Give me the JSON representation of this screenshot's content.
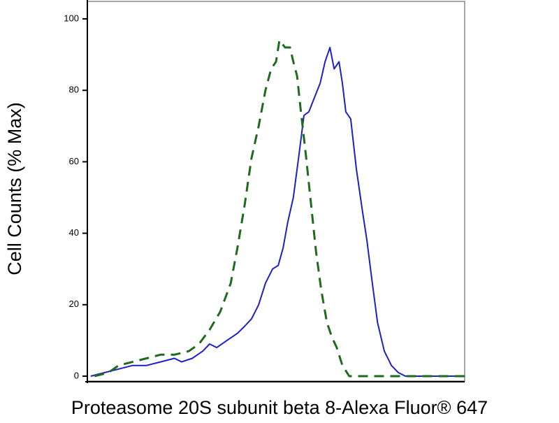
{
  "chart_data": {
    "type": "line",
    "x_label": "Proteasome 20S subunit beta 8-Alexa Fluor® 647",
    "y_label": "Cell Counts (% Max)",
    "xlim": [
      0,
      100
    ],
    "ylim": [
      0,
      100
    ],
    "yticks": [
      0,
      20,
      40,
      60,
      80,
      100
    ],
    "series": [
      {
        "color": "#1f1fc8",
        "dash": false,
        "x": [
          0.9,
          4.6,
          8.3,
          12.0,
          15.7,
          19.4,
          23.1,
          25.0,
          27.8,
          30.6,
          32.4,
          34.3,
          37.0,
          39.8,
          41.7,
          43.5,
          45.4,
          47.2,
          49.1,
          50.6,
          51.9,
          53.1,
          54.6,
          56.1,
          57.4,
          58.7,
          60.2,
          61.7,
          63.0,
          64.3,
          65.4,
          66.7,
          67.6,
          68.5,
          69.8,
          71.3,
          72.8,
          74.1,
          75.4,
          76.9,
          78.7,
          80.6,
          82.4,
          84.3,
          100
        ],
        "values": [
          0,
          1,
          2,
          3,
          3,
          4,
          5,
          4,
          5,
          7,
          9,
          8,
          10,
          12,
          14,
          16,
          20,
          26,
          30,
          31,
          36,
          43,
          50,
          62,
          73,
          74,
          78,
          82,
          88,
          92,
          86,
          88,
          82,
          74,
          72,
          58,
          47,
          38,
          27,
          15,
          7,
          3,
          1,
          0,
          0
        ]
      },
      {
        "color": "#1e6b1e",
        "dash": true,
        "x": [
          1.9,
          5.6,
          8.3,
          12.0,
          15.7,
          19.4,
          23.1,
          26.9,
          29.6,
          32.4,
          35.2,
          38.0,
          39.8,
          41.7,
          43.5,
          45.4,
          47.2,
          48.7,
          50.0,
          50.9,
          52.4,
          53.7,
          54.6,
          55.6,
          56.5,
          57.9,
          59.3,
          60.6,
          62.0,
          63.5,
          64.8,
          66.1,
          67.6,
          69.4,
          100
        ],
        "values": [
          0,
          1,
          3,
          4,
          5,
          6,
          6,
          7,
          9,
          13,
          18,
          26,
          36,
          48,
          61,
          70,
          80,
          86,
          88,
          94,
          92,
          92,
          88,
          84,
          75,
          62,
          48,
          35,
          24,
          15,
          11,
          8,
          3,
          0,
          0
        ]
      }
    ]
  }
}
